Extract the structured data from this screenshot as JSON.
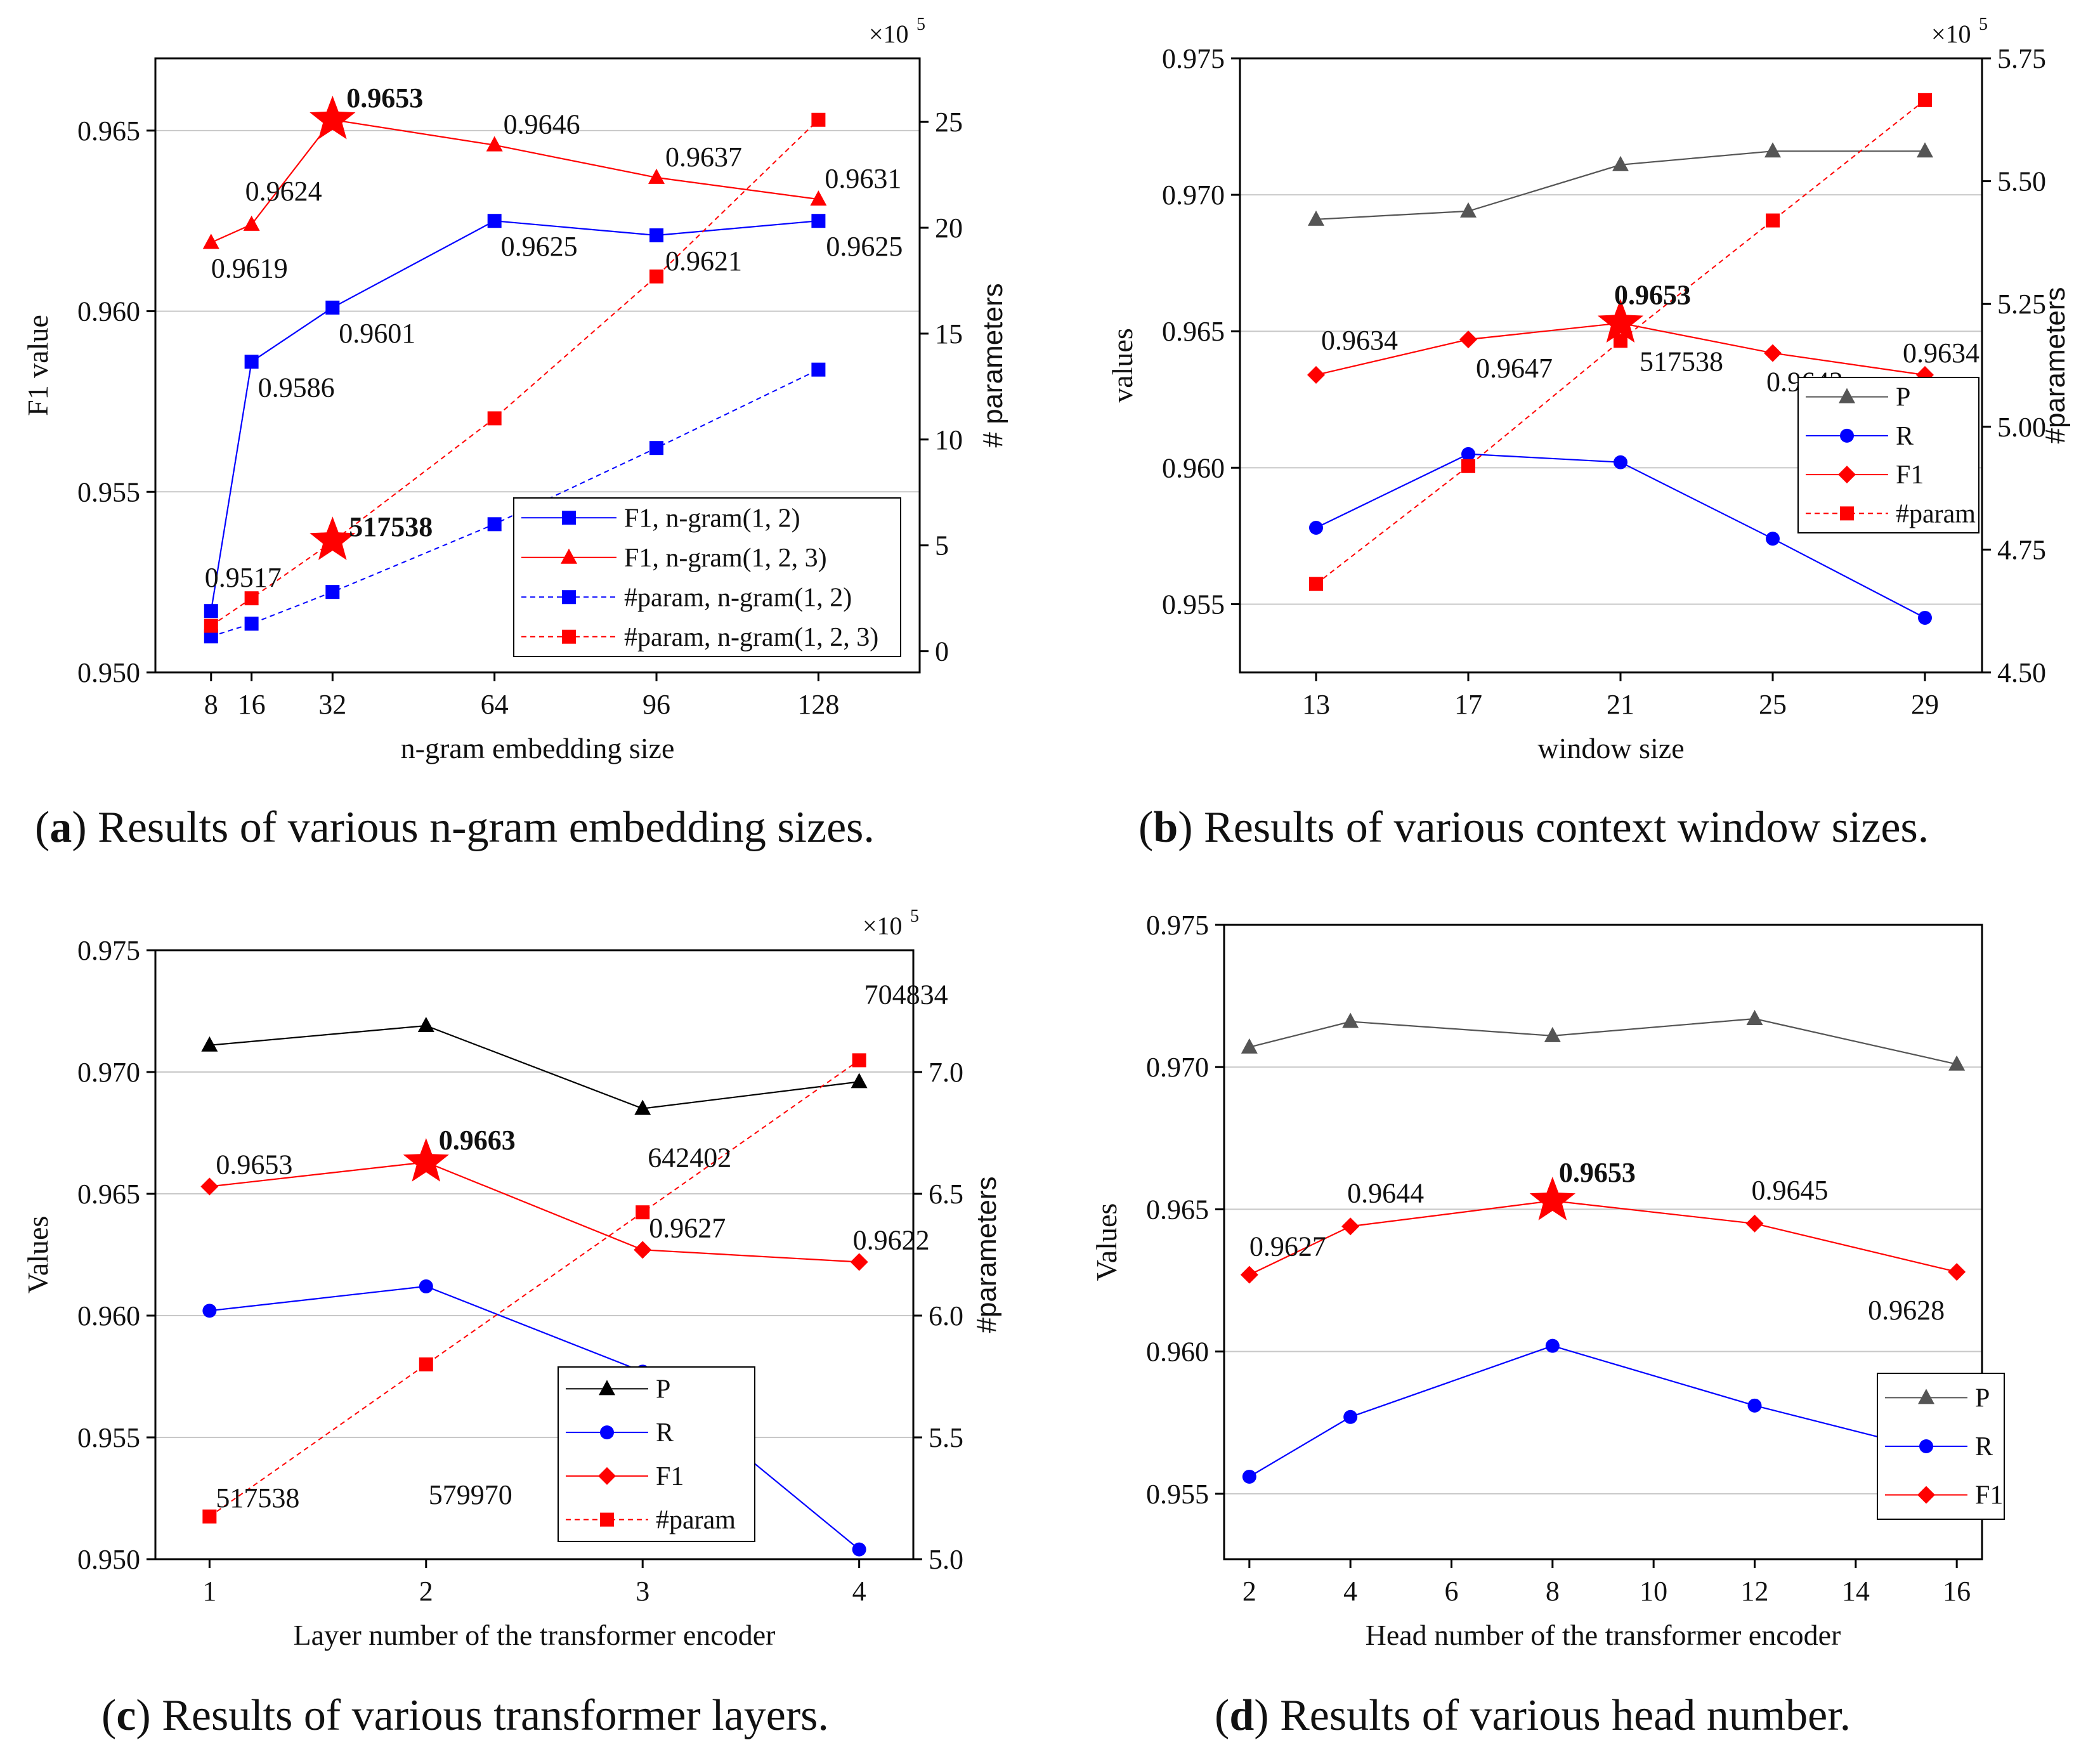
{
  "captions": [
    {
      "letter": "a",
      "text": " Results of various n-gram embedding sizes."
    },
    {
      "letter": "b",
      "text": " Results of various context window sizes."
    },
    {
      "letter": "c",
      "text": " Results of various transformer layers."
    },
    {
      "letter": "d",
      "text": " Results of various head number."
    }
  ],
  "chart_data": [
    {
      "type": "line",
      "panel": "a",
      "xlabel": "n-gram embedding size",
      "ylabel": "F1 value",
      "y2label": "# parameters",
      "y2multiplier": "×10",
      "y2exponent": "5",
      "x_ticks": [
        8,
        16,
        32,
        64,
        96,
        128
      ],
      "ylim": [
        0.95,
        0.967
      ],
      "y_ticks": [
        0.95,
        0.955,
        0.96,
        0.965
      ],
      "y2lim": [
        -1,
        28
      ],
      "y2_ticks": [
        0,
        5,
        10,
        15,
        20,
        25
      ],
      "grid": true,
      "legend": "bottom-right",
      "series": [
        {
          "name": "F1, n-gram(1, 2)",
          "axis": "left",
          "color": "#0000ff",
          "marker": "square",
          "dashed": false,
          "x": [
            8,
            16,
            32,
            64,
            96,
            128
          ],
          "values": [
            0.9517,
            0.9586,
            0.9601,
            0.9625,
            0.9621,
            0.9625
          ]
        },
        {
          "name": "F1, n-gram(1, 2, 3)",
          "axis": "left",
          "color": "#ff0000",
          "marker": "triangle",
          "dashed": false,
          "x": [
            8,
            16,
            32,
            64,
            96,
            128
          ],
          "values": [
            0.9619,
            0.9624,
            0.9653,
            0.9646,
            0.9637,
            0.9631
          ]
        },
        {
          "name": "#param, n-gram(1, 2)",
          "axis": "right",
          "color": "#0000ff",
          "marker": "square",
          "dashed": true,
          "x": [
            8,
            16,
            32,
            64,
            96,
            128
          ],
          "values": [
            0.7,
            1.3,
            2.8,
            6.0,
            9.6,
            13.3
          ]
        },
        {
          "name": "#param, n-gram(1, 2, 3)",
          "axis": "right",
          "color": "#ff0000",
          "marker": "square",
          "dashed": true,
          "x": [
            8,
            16,
            32,
            64,
            96,
            128
          ],
          "values": [
            1.2,
            2.5,
            5.17538,
            11.0,
            17.7,
            25.1
          ]
        }
      ],
      "labels": [
        {
          "text": "0.9619",
          "x": 8,
          "y": 0.9619,
          "dx": 0,
          "dy": 55,
          "anchor": "start",
          "bold": false
        },
        {
          "text": "0.9624",
          "x": 16,
          "y": 0.9624,
          "dx": -10,
          "dy": -38,
          "anchor": "start",
          "bold": false
        },
        {
          "text": "0.9653",
          "x": 32,
          "y": 0.9653,
          "dx": 22,
          "dy": -20,
          "anchor": "start",
          "bold": true
        },
        {
          "text": "0.9646",
          "x": 64,
          "y": 0.9646,
          "dx": 14,
          "dy": -18,
          "anchor": "start",
          "bold": false
        },
        {
          "text": "0.9637",
          "x": 96,
          "y": 0.9637,
          "dx": 14,
          "dy": -18,
          "anchor": "start",
          "bold": false
        },
        {
          "text": "0.9631",
          "x": 128,
          "y": 0.9631,
          "dx": 10,
          "dy": -18,
          "anchor": "start",
          "bold": false
        },
        {
          "text": "0.9625",
          "x": 64,
          "y": 0.9625,
          "dx": 10,
          "dy": 55,
          "anchor": "start",
          "bold": false
        },
        {
          "text": "0.9621",
          "x": 96,
          "y": 0.9621,
          "dx": 14,
          "dy": 55,
          "anchor": "start",
          "bold": false
        },
        {
          "text": "0.9625",
          "x": 128,
          "y": 0.9625,
          "dx": 12,
          "dy": 55,
          "anchor": "start",
          "bold": false
        },
        {
          "text": "0.9601",
          "x": 32,
          "y": 0.9601,
          "dx": 10,
          "dy": 55,
          "anchor": "start",
          "bold": false
        },
        {
          "text": "0.9586",
          "x": 16,
          "y": 0.9586,
          "dx": 10,
          "dy": 55,
          "anchor": "start",
          "bold": false
        },
        {
          "text": "0.9517",
          "x": 8,
          "y": 0.9517,
          "dx": -10,
          "dy": -38,
          "anchor": "start",
          "bold": false
        },
        {
          "text": "517538",
          "x": 32,
          "y": 0.9536,
          "dx": 26,
          "dy": -10,
          "anchor": "start",
          "bold": true
        }
      ],
      "stars": [
        {
          "x": 32,
          "y": 0.9653
        },
        {
          "x": 32,
          "y": 0.95365
        }
      ]
    },
    {
      "type": "line",
      "panel": "b",
      "xlabel": "window size",
      "ylabel": "values",
      "y2label": "#parameters",
      "y2multiplier": "×10",
      "y2exponent": "5",
      "x_ticks": [
        13,
        17,
        21,
        25,
        29
      ],
      "xlim": [
        11,
        30.5
      ],
      "ylim": [
        0.9525,
        0.975
      ],
      "y_ticks": [
        0.955,
        0.96,
        0.965,
        0.97,
        0.975
      ],
      "y2lim": [
        4.5,
        5.75
      ],
      "y2_ticks": [
        4.5,
        4.75,
        5.0,
        5.25,
        5.5,
        5.75
      ],
      "grid": true,
      "legend": "center-right",
      "series": [
        {
          "name": "P",
          "axis": "left",
          "color": "#555555",
          "marker": "triangle",
          "dashed": false,
          "x": [
            13,
            17,
            21,
            25,
            29
          ],
          "values": [
            0.9691,
            0.9694,
            0.9711,
            0.9716,
            0.9716
          ]
        },
        {
          "name": "R",
          "axis": "left",
          "color": "#0000ff",
          "marker": "circle",
          "dashed": false,
          "x": [
            13,
            17,
            21,
            25,
            29
          ],
          "values": [
            0.9578,
            0.9605,
            0.9602,
            0.9574,
            0.9545
          ]
        },
        {
          "name": "F1",
          "axis": "left",
          "color": "#ff0000",
          "marker": "diamond",
          "dashed": false,
          "x": [
            13,
            17,
            21,
            25,
            29
          ],
          "values": [
            0.9634,
            0.9647,
            0.9653,
            0.9642,
            0.9634
          ]
        },
        {
          "name": "#param",
          "axis": "right",
          "color": "#ff0000",
          "marker": "square",
          "dashed": true,
          "x": [
            13,
            17,
            21,
            25,
            29
          ],
          "values": [
            4.68,
            4.92,
            5.175,
            5.42,
            5.665
          ]
        }
      ],
      "labels": [
        {
          "text": "0.9634",
          "x": 13,
          "y": 0.9634,
          "dx": 8,
          "dy": -40,
          "anchor": "start",
          "bold": false
        },
        {
          "text": "0.9647",
          "x": 17,
          "y": 0.9647,
          "dx": 12,
          "dy": 60,
          "anchor": "start",
          "bold": false
        },
        {
          "text": "0.9653",
          "x": 21,
          "y": 0.9653,
          "dx": -10,
          "dy": -30,
          "anchor": "start",
          "bold": true
        },
        {
          "text": "517538",
          "x": 21,
          "y": 0.9653,
          "dx": 30,
          "dy": 75,
          "anchor": "start",
          "bold": false
        },
        {
          "text": "0.9642",
          "x": 25,
          "y": 0.9642,
          "dx": -10,
          "dy": 60,
          "anchor": "start",
          "bold": false
        },
        {
          "text": "0.9634",
          "x": 29,
          "y": 0.9634,
          "dx": -35,
          "dy": -20,
          "anchor": "start",
          "bold": false
        }
      ],
      "stars": [
        {
          "x": 21,
          "y": 0.9653
        }
      ]
    },
    {
      "type": "line",
      "panel": "c",
      "xlabel": "Layer number of the transformer encoder",
      "ylabel": "Values",
      "y2label": "#parameters",
      "y2multiplier": "×10",
      "y2exponent": "5",
      "x_ticks": [
        1,
        2,
        3,
        4
      ],
      "xlim": [
        0.75,
        4.25
      ],
      "ylim": [
        0.95,
        0.975
      ],
      "y_ticks": [
        0.95,
        0.955,
        0.96,
        0.965,
        0.97,
        0.975
      ],
      "y2lim": [
        5.0,
        7.5
      ],
      "y2_ticks": [
        5.0,
        5.5,
        6.0,
        6.5,
        7.0
      ],
      "grid": true,
      "legend": "bottom-right",
      "series": [
        {
          "name": "P",
          "axis": "left",
          "color": "#000000",
          "marker": "triangle",
          "dashed": false,
          "x": [
            1,
            2,
            3,
            4
          ],
          "values": [
            0.9711,
            0.9719,
            0.9685,
            0.9696
          ]
        },
        {
          "name": "R",
          "axis": "left",
          "color": "#0000ff",
          "marker": "circle",
          "dashed": false,
          "x": [
            1,
            2,
            3,
            4
          ],
          "values": [
            0.9602,
            0.9612,
            0.9577,
            0.9504
          ]
        },
        {
          "name": "F1",
          "axis": "left",
          "color": "#ff0000",
          "marker": "diamond",
          "dashed": false,
          "x": [
            1,
            2,
            3,
            4
          ],
          "values": [
            0.9653,
            0.9663,
            0.9627,
            0.9622
          ]
        },
        {
          "name": "#param",
          "axis": "right",
          "color": "#ff0000",
          "marker": "square",
          "dashed": true,
          "x": [
            1,
            2,
            3,
            4
          ],
          "values": [
            5.17538,
            5.7997,
            6.42402,
            7.04834
          ]
        }
      ],
      "labels": [
        {
          "text": "0.9653",
          "x": 1,
          "y": 0.9653,
          "dx": 10,
          "dy": -20,
          "anchor": "start",
          "bold": false
        },
        {
          "text": "0.9663",
          "x": 2,
          "y": 0.9663,
          "dx": 20,
          "dy": -20,
          "anchor": "start",
          "bold": true
        },
        {
          "text": "0.9627",
          "x": 3,
          "y": 0.9627,
          "dx": 10,
          "dy": -20,
          "anchor": "start",
          "bold": false
        },
        {
          "text": "0.9622",
          "x": 4,
          "y": 0.9622,
          "dx": -10,
          "dy": -20,
          "anchor": "start",
          "bold": false
        },
        {
          "text": "642402",
          "x": 3,
          "y": 0.9658,
          "dx": 8,
          "dy": -12,
          "anchor": "start",
          "bold": false
        },
        {
          "text": "579970",
          "x": 2,
          "y": 0.952,
          "dx": 4,
          "dy": -10,
          "anchor": "start",
          "bold": false
        },
        {
          "text": "704834",
          "x": 4,
          "y": 0.9728,
          "dx": 8,
          "dy": 0,
          "anchor": "start",
          "bold": false
        },
        {
          "text": "517538",
          "x": 1,
          "y": 0.952,
          "dx": 10,
          "dy": -5,
          "anchor": "start",
          "bold": false
        }
      ],
      "stars": [
        {
          "x": 2,
          "y": 0.9663
        }
      ]
    },
    {
      "type": "line",
      "panel": "d",
      "xlabel": "Head number of the transformer encoder",
      "ylabel": "Values",
      "x_ticks": [
        2,
        4,
        6,
        8,
        10,
        12,
        14,
        16
      ],
      "xlim": [
        1.5,
        16.5
      ],
      "ylim": [
        0.9527,
        0.975
      ],
      "y_ticks": [
        0.955,
        0.96,
        0.965,
        0.97,
        0.975
      ],
      "grid": true,
      "legend": "bottom-right",
      "series": [
        {
          "name": "P",
          "axis": "left",
          "color": "#555555",
          "marker": "triangle",
          "dashed": false,
          "x": [
            2,
            4,
            8,
            12,
            16
          ],
          "values": [
            0.9707,
            0.9716,
            0.9711,
            0.9717,
            0.9701
          ]
        },
        {
          "name": "R",
          "axis": "left",
          "color": "#0000ff",
          "marker": "circle",
          "dashed": false,
          "x": [
            2,
            4,
            8,
            12,
            16
          ],
          "values": [
            0.9556,
            0.9577,
            0.9602,
            0.9581,
            0.9563
          ]
        },
        {
          "name": "F1",
          "axis": "left",
          "color": "#ff0000",
          "marker": "diamond",
          "dashed": false,
          "x": [
            2,
            4,
            8,
            12,
            16
          ],
          "values": [
            0.9627,
            0.9644,
            0.9653,
            0.9645,
            0.9628
          ]
        }
      ],
      "labels": [
        {
          "text": "0.9627",
          "x": 2,
          "y": 0.9627,
          "dx": 0,
          "dy": -30,
          "anchor": "start",
          "bold": false
        },
        {
          "text": "0.9644",
          "x": 4,
          "y": 0.9644,
          "dx": -5,
          "dy": -38,
          "anchor": "start",
          "bold": false
        },
        {
          "text": "0.9653",
          "x": 8,
          "y": 0.9653,
          "dx": 10,
          "dy": -30,
          "anchor": "start",
          "bold": true
        },
        {
          "text": "0.9645",
          "x": 12,
          "y": 0.9645,
          "dx": -5,
          "dy": -38,
          "anchor": "start",
          "bold": false
        },
        {
          "text": "0.9628",
          "x": 16,
          "y": 0.9628,
          "dx": -140,
          "dy": 75,
          "anchor": "start",
          "bold": false
        }
      ],
      "stars": [
        {
          "x": 8,
          "y": 0.9653
        }
      ]
    }
  ]
}
